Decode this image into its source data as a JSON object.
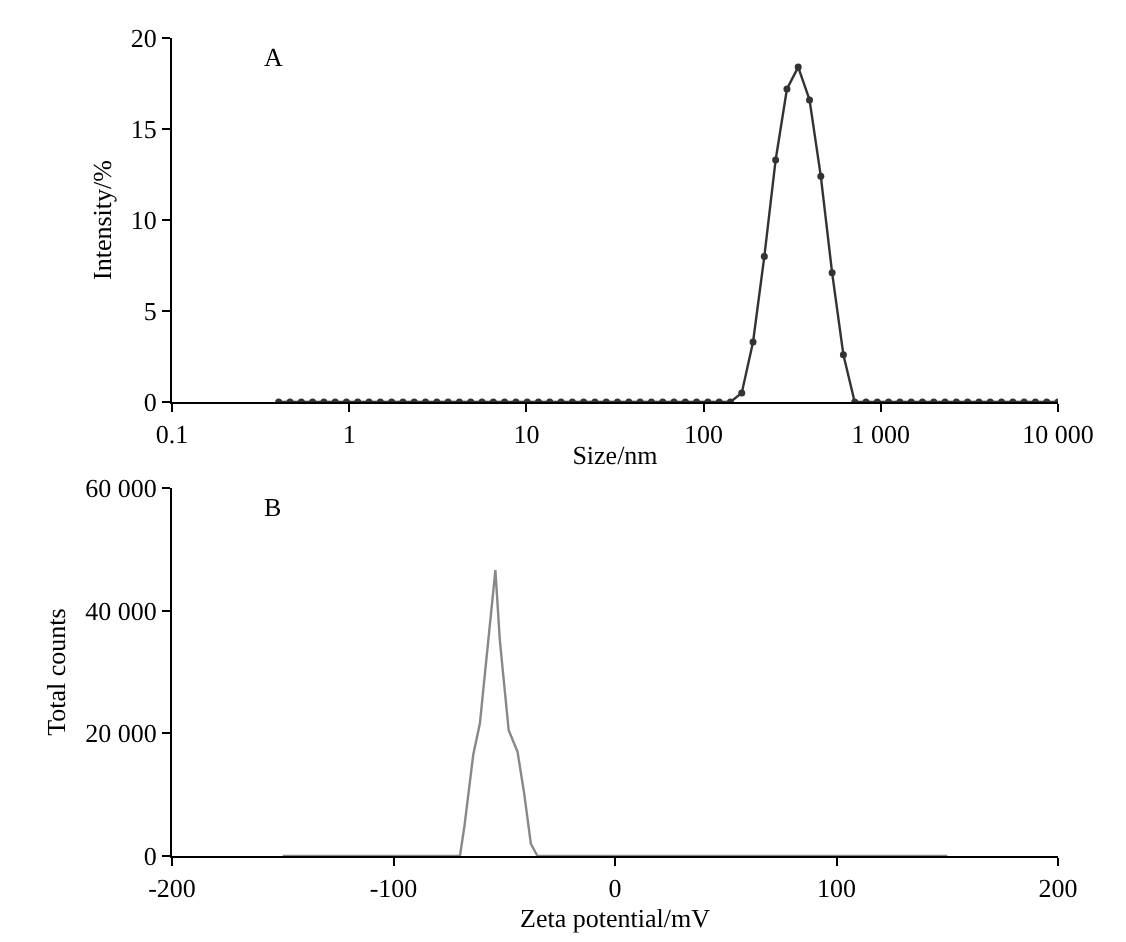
{
  "chart_data": [
    {
      "type": "line",
      "annotations": [
        "A"
      ],
      "xlabel": "Size/nm",
      "ylabel": "Intensity/%",
      "log": "x",
      "marker": "circle",
      "line_style": "solid",
      "grid": false,
      "xlim": [
        0.1,
        10000
      ],
      "xticks": [
        0.1,
        1,
        10,
        100,
        {
          "value": 1000,
          "label": "1 000"
        },
        {
          "value": 10000,
          "label": "10 000"
        }
      ],
      "ylim": [
        0,
        20
      ],
      "yticks": [
        0,
        5,
        10,
        15,
        20
      ],
      "series": [
        {
          "color": "#333333",
          "x": [
            0.4,
            0.4632,
            0.5365,
            0.6213,
            0.7195,
            0.8332,
            0.9649,
            1.117,
            1.294,
            1.499,
            1.736,
            2.01,
            2.328,
            2.696,
            3.122,
            3.615,
            4.187,
            4.849,
            5.615,
            6.503,
            7.531,
            8.721,
            10.1,
            11.7,
            13.54,
            15.69,
            18.17,
            21.04,
            24.36,
            28.21,
            32.67,
            37.84,
            43.82,
            50.75,
            58.77,
            68.06,
            78.82,
            91.28,
            105.7,
            122.4,
            141.8,
            164.2,
            190.1,
            220.2,
            255,
            295.3,
            342,
            396.1,
            458.7,
            531.2,
            615.1,
            712.4,
            825,
            955.4,
            1106,
            1281,
            1484,
            1718,
            1990,
            2305,
            2669,
            3091,
            3580,
            4145,
            4801,
            5560,
            6439,
            7456,
            8635,
            10000
          ],
          "values": [
            0,
            0,
            0,
            0,
            0,
            0,
            0,
            0,
            0,
            0,
            0,
            0,
            0,
            0,
            0,
            0,
            0,
            0,
            0,
            0,
            0,
            0,
            0,
            0,
            0,
            0,
            0,
            0,
            0,
            0,
            0,
            0,
            0,
            0,
            0,
            0,
            0,
            0,
            0,
            0,
            0,
            0.5,
            3.3,
            8,
            13.3,
            17.2,
            18.4,
            16.6,
            12.4,
            7.1,
            2.6,
            0,
            0,
            0,
            0,
            0,
            0,
            0,
            0,
            0,
            0,
            0,
            0,
            0,
            0,
            0,
            0,
            0,
            0,
            0
          ]
        }
      ]
    },
    {
      "type": "line",
      "annotations": [
        "B"
      ],
      "xlabel": "Zeta potential/mV",
      "ylabel": "Total counts",
      "marker": "none",
      "line_style": "solid",
      "grid": false,
      "xlim": [
        -200,
        200
      ],
      "xticks": [
        -200,
        -100,
        0,
        100,
        200
      ],
      "ylim": [
        0,
        60000
      ],
      "yticks": [
        0,
        {
          "value": 20000,
          "label": "20 000"
        },
        {
          "value": 40000,
          "label": "40 000"
        },
        {
          "value": 60000,
          "label": "60 000"
        }
      ],
      "series": [
        {
          "color": "#888888",
          "x": [
            -150,
            -70,
            -68,
            -64,
            -61,
            -54,
            -52,
            -48,
            -44,
            -41,
            -38,
            -35,
            150
          ],
          "values": [
            0,
            0,
            4800,
            16500,
            21600,
            46600,
            35200,
            20500,
            17000,
            10200,
            2000,
            0,
            0
          ]
        }
      ]
    }
  ]
}
